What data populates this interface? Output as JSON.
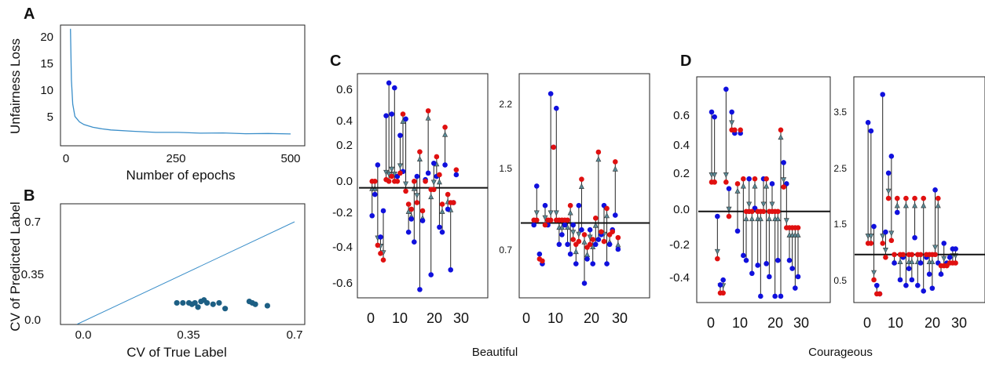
{
  "colors": {
    "line": "#3a8ec9",
    "scatter": "#1d5f84",
    "initial": "#1010dd",
    "final": "#e01010",
    "arrow": "#5a8a96"
  },
  "panels": {
    "A": {
      "letter": "A",
      "xlabel": "Number of epochs",
      "ylabel": "Unfairness Loss",
      "xticks": [
        "0",
        "250",
        "500"
      ],
      "yticks": [
        "20",
        "15",
        "10",
        "5"
      ]
    },
    "B": {
      "letter": "B",
      "xlabel": "CV of True Label",
      "ylabel": "CV of Predicted Label",
      "xticks": [
        "0.0",
        "0.35",
        "0.7"
      ],
      "yticks": [
        "0.7",
        "0.35",
        "0.0"
      ]
    },
    "C": {
      "letter": "C",
      "xlabel": "Beautiful",
      "left_yticks": [
        "0.6",
        "0.4",
        "0.2",
        "0.0",
        "-0.2",
        "-0.4",
        "-0.6"
      ],
      "right_yticks": [
        "2.2",
        "1.5",
        "0.7"
      ],
      "xticks": [
        "0",
        "10",
        "20",
        "30"
      ]
    },
    "D": {
      "letter": "D",
      "xlabel": "Courageous",
      "left_yticks": [
        "0.6",
        "0.4",
        "0.2",
        "0.0",
        "-0.2",
        "-0.4"
      ],
      "right_yticks": [
        "3.5",
        "2.5",
        "1.5",
        "0.5"
      ],
      "xticks": [
        "0",
        "10",
        "20",
        "30"
      ]
    }
  },
  "chart_data": [
    {
      "type": "line",
      "panel": "A",
      "xlabel": "Number of epochs",
      "ylabel": "Unfairness Loss",
      "xlim": [
        0,
        520
      ],
      "ylim": [
        1,
        23
      ],
      "x": [
        10,
        12,
        15,
        20,
        30,
        40,
        60,
        80,
        100,
        150,
        200,
        250,
        300,
        350,
        400,
        450,
        500
      ],
      "y": [
        21.5,
        12,
        7.5,
        5.2,
        4.2,
        3.7,
        3.2,
        2.9,
        2.7,
        2.4,
        2.3,
        2.2,
        2.15,
        2.1,
        2.05,
        2.0,
        2.0
      ]
    },
    {
      "type": "scatter",
      "panel": "B",
      "xlabel": "CV of True Label",
      "ylabel": "CV of Predicted Label",
      "xlim": [
        -0.04,
        0.76
      ],
      "ylim": [
        -0.04,
        0.76
      ],
      "reference_line": [
        [
          -0.02,
          -0.02
        ],
        [
          0.7,
          0.7
        ]
      ],
      "points": [
        [
          0.31,
          0.13
        ],
        [
          0.33,
          0.13
        ],
        [
          0.35,
          0.13
        ],
        [
          0.36,
          0.12
        ],
        [
          0.37,
          0.13
        ],
        [
          0.38,
          0.1
        ],
        [
          0.39,
          0.14
        ],
        [
          0.4,
          0.15
        ],
        [
          0.41,
          0.13
        ],
        [
          0.43,
          0.12
        ],
        [
          0.45,
          0.13
        ],
        [
          0.47,
          0.09
        ],
        [
          0.55,
          0.14
        ],
        [
          0.56,
          0.13
        ],
        [
          0.57,
          0.12
        ],
        [
          0.61,
          0.11
        ]
      ]
    },
    {
      "type": "scatter",
      "panel": "C-left",
      "xlabel": "Beautiful",
      "xlim": [
        -3,
        39
      ],
      "ylim": [
        -0.72,
        0.72
      ],
      "baseline": -0.02,
      "series": [
        {
          "name": "",
          "values": [
            -0.19,
            -0.06,
            0.12,
            -0.32,
            -0.16,
            0.42,
            0.62,
            0.43,
            0.59,
            0.05,
            0.3,
            0.08,
            0.4,
            -0.29,
            -0.21,
            -0.35,
            0.05,
            -0.64,
            -0.22,
            0.03,
            0.07,
            -0.55,
            0.13,
            0.05,
            -0.26,
            -0.29,
            0.12,
            -0.15,
            -0.52,
            -0.11,
            0.06
          ]
        },
        {
          "name": "",
          "values": [
            0.02,
            0.02,
            -0.37,
            -0.42,
            -0.46,
            0.03,
            0.02,
            0.05,
            0.02,
            0.02,
            0.07,
            0.43,
            -0.04,
            -0.12,
            -0.15,
            0.02,
            -0.11,
            0.2,
            -0.16,
            0.02,
            0.45,
            -0.03,
            -0.03,
            0.17,
            0.06,
            -0.12,
            0.35,
            -0.06,
            -0.11,
            -0.11,
            0.09
          ]
        }
      ]
    },
    {
      "type": "scatter",
      "panel": "C-right",
      "xlabel": "Beautiful",
      "xlim": [
        -3,
        39
      ],
      "ylim": [
        0.35,
        2.5
      ],
      "baseline": 0.97,
      "series": [
        {
          "name": "",
          "values": [
            0.95,
            1.35,
            0.65,
            0.55,
            1.15,
            0.95,
            2.3,
            1.75,
            2.15,
            0.75,
            0.85,
            0.95,
            0.75,
            0.65,
            0.95,
            0.55,
            1.15,
            0.9,
            0.35,
            0.6,
            0.9,
            0.55,
            0.75,
            0.8,
            0.85,
            1.15,
            0.55,
            0.75,
            0.9,
            1.05,
            0.7
          ]
        },
        {
          "name": "",
          "values": [
            1.0,
            1.0,
            0.6,
            0.58,
            0.95,
            1.0,
            1.0,
            1.75,
            1.0,
            1.0,
            1.0,
            1.0,
            1.0,
            1.15,
            0.8,
            0.75,
            0.78,
            1.42,
            0.85,
            0.72,
            0.75,
            0.8,
            1.02,
            1.7,
            0.88,
            0.78,
            1.12,
            0.85,
            0.88,
            1.6,
            0.82
          ]
        }
      ]
    },
    {
      "type": "scatter",
      "panel": "D-left",
      "xlabel": "Courageous",
      "xlim": [
        -3,
        39
      ],
      "ylim": [
        -0.55,
        0.82
      ],
      "baseline": 0.0,
      "series": [
        {
          "name": "",
          "values": [
            0.61,
            0.58,
            -0.03,
            -0.45,
            -0.42,
            0.75,
            0.14,
            0.61,
            0.48,
            -0.12,
            0.48,
            -0.27,
            -0.3,
            0.2,
            -0.38,
            0.02,
            -0.33,
            -0.52,
            0.2,
            -0.32,
            -0.4,
            0.17,
            -0.52,
            -0.3,
            -0.52,
            0.3,
            0.17,
            -0.3,
            -0.35,
            -0.47,
            -0.4
          ]
        },
        {
          "name": "",
          "values": [
            0.18,
            0.18,
            -0.29,
            -0.5,
            -0.5,
            0.18,
            -0.03,
            0.5,
            0.5,
            0.17,
            0.5,
            0.2,
            0.0,
            0.0,
            0.0,
            0.2,
            0.0,
            0.0,
            0.0,
            0.2,
            0.0,
            0.0,
            0.0,
            0.0,
            0.5,
            0.15,
            -0.1,
            -0.1,
            -0.1,
            -0.1,
            -0.1
          ]
        }
      ]
    },
    {
      "type": "scatter",
      "panel": "D-right",
      "xlabel": "Courageous",
      "xlim": [
        -3,
        39
      ],
      "ylim": [
        0.2,
        3.9
      ],
      "baseline": 0.95,
      "series": [
        {
          "name": "",
          "values": [
            3.3,
            3.15,
            1.45,
            0.4,
            0.25,
            3.8,
            1.35,
            2.4,
            2.7,
            0.8,
            1.7,
            0.5,
            0.9,
            0.4,
            0.7,
            0.5,
            1.25,
            0.4,
            0.8,
            0.3,
            0.9,
            0.6,
            0.35,
            2.1,
            0.8,
            0.6,
            1.15,
            0.8,
            0.9,
            1.05,
            1.05
          ]
        },
        {
          "name": "",
          "values": [
            1.15,
            1.15,
            0.5,
            0.25,
            0.25,
            1.15,
            0.9,
            1.95,
            1.2,
            0.95,
            1.95,
            0.95,
            0.95,
            1.95,
            0.95,
            0.95,
            1.95,
            0.95,
            0.95,
            1.95,
            0.95,
            0.95,
            0.95,
            0.95,
            1.95,
            0.75,
            0.75,
            0.75,
            0.8,
            0.8,
            0.8
          ]
        }
      ]
    }
  ]
}
